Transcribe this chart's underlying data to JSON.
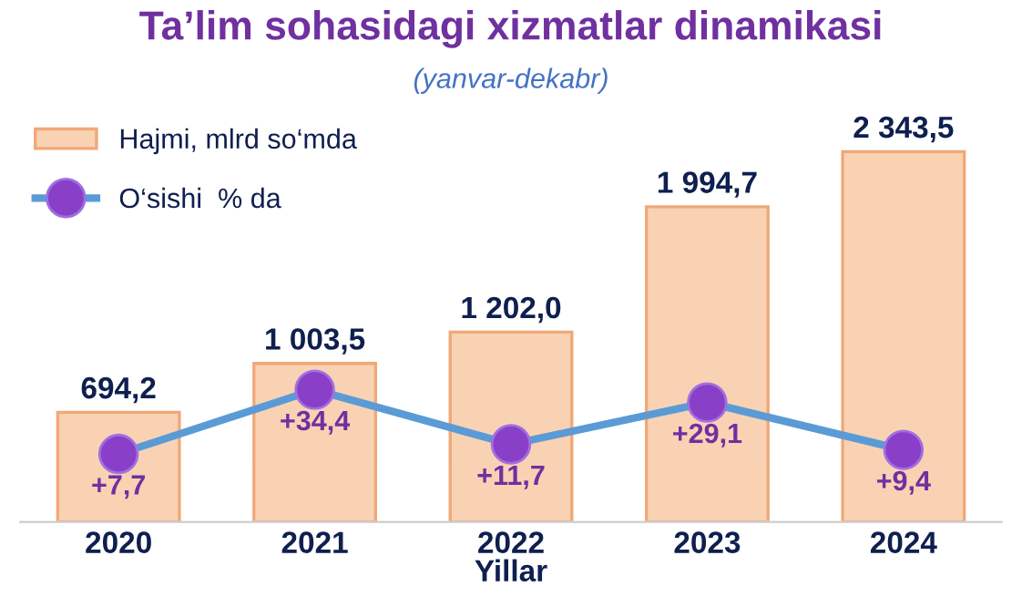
{
  "chart_data": {
    "type": "bar",
    "title": "Ta’lim sohasidagi xizmatlar dinamikasi",
    "subtitle": "(yanvar-dekabr)",
    "xlabel": "Yillar",
    "categories": [
      "2020",
      "2021",
      "2022",
      "2023",
      "2024"
    ],
    "series": [
      {
        "name": "Hajmi, mlrd so‘mda",
        "color": "#f9d2b4",
        "values": [
          694.2,
          1003.5,
          1202.0,
          1994.7,
          2343.5
        ],
        "value_labels": [
          "694,2",
          "1 003,5",
          "1 202,0",
          "1 994,7",
          "2 343,5"
        ]
      },
      {
        "name": "O‘sishi  % da",
        "type": "line",
        "axis": "y2",
        "color": "#5b9bd5",
        "values": [
          7.7,
          34.4,
          11.7,
          29.1,
          9.4
        ],
        "value_labels": [
          "+7,7",
          "+34,4",
          "+11,7",
          "+29,1",
          "+9,4"
        ],
        "marker": "circle"
      }
    ],
    "tick_labels": "x",
    "legend": "top left",
    "grid": false
  }
}
